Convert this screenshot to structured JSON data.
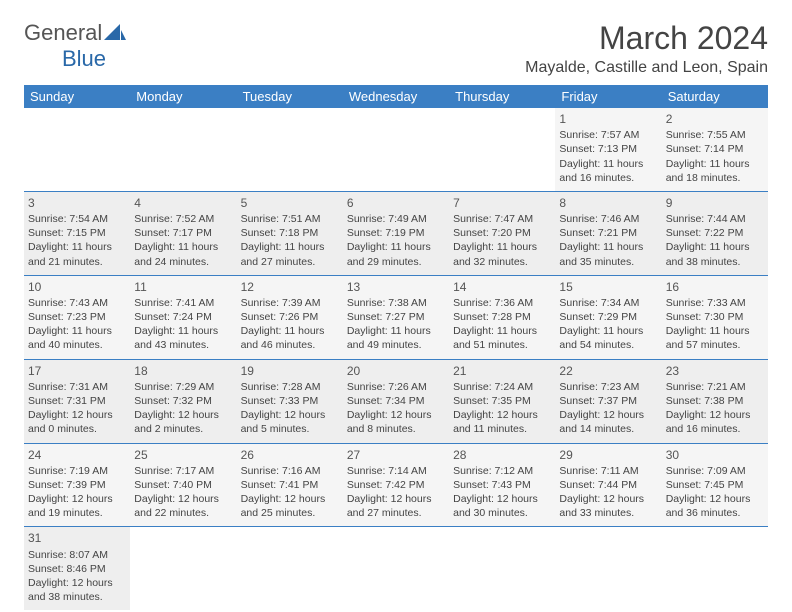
{
  "logo": {
    "text1": "General",
    "text2": "Blue"
  },
  "title": "March 2024",
  "location": "Mayalde, Castille and Leon, Spain",
  "colors": {
    "header_bg": "#3b7fc4",
    "header_text": "#ffffff",
    "cell_text": "#444444",
    "logo_gray": "#555555",
    "logo_blue": "#2968a8"
  },
  "day_headers": [
    "Sunday",
    "Monday",
    "Tuesday",
    "Wednesday",
    "Thursday",
    "Friday",
    "Saturday"
  ],
  "weeks": [
    [
      null,
      null,
      null,
      null,
      null,
      {
        "d": "1",
        "sr": "7:57 AM",
        "ss": "7:13 PM",
        "dl": "11 hours and 16 minutes."
      },
      {
        "d": "2",
        "sr": "7:55 AM",
        "ss": "7:14 PM",
        "dl": "11 hours and 18 minutes."
      }
    ],
    [
      {
        "d": "3",
        "sr": "7:54 AM",
        "ss": "7:15 PM",
        "dl": "11 hours and 21 minutes."
      },
      {
        "d": "4",
        "sr": "7:52 AM",
        "ss": "7:17 PM",
        "dl": "11 hours and 24 minutes."
      },
      {
        "d": "5",
        "sr": "7:51 AM",
        "ss": "7:18 PM",
        "dl": "11 hours and 27 minutes."
      },
      {
        "d": "6",
        "sr": "7:49 AM",
        "ss": "7:19 PM",
        "dl": "11 hours and 29 minutes."
      },
      {
        "d": "7",
        "sr": "7:47 AM",
        "ss": "7:20 PM",
        "dl": "11 hours and 32 minutes."
      },
      {
        "d": "8",
        "sr": "7:46 AM",
        "ss": "7:21 PM",
        "dl": "11 hours and 35 minutes."
      },
      {
        "d": "9",
        "sr": "7:44 AM",
        "ss": "7:22 PM",
        "dl": "11 hours and 38 minutes."
      }
    ],
    [
      {
        "d": "10",
        "sr": "7:43 AM",
        "ss": "7:23 PM",
        "dl": "11 hours and 40 minutes."
      },
      {
        "d": "11",
        "sr": "7:41 AM",
        "ss": "7:24 PM",
        "dl": "11 hours and 43 minutes."
      },
      {
        "d": "12",
        "sr": "7:39 AM",
        "ss": "7:26 PM",
        "dl": "11 hours and 46 minutes."
      },
      {
        "d": "13",
        "sr": "7:38 AM",
        "ss": "7:27 PM",
        "dl": "11 hours and 49 minutes."
      },
      {
        "d": "14",
        "sr": "7:36 AM",
        "ss": "7:28 PM",
        "dl": "11 hours and 51 minutes."
      },
      {
        "d": "15",
        "sr": "7:34 AM",
        "ss": "7:29 PM",
        "dl": "11 hours and 54 minutes."
      },
      {
        "d": "16",
        "sr": "7:33 AM",
        "ss": "7:30 PM",
        "dl": "11 hours and 57 minutes."
      }
    ],
    [
      {
        "d": "17",
        "sr": "7:31 AM",
        "ss": "7:31 PM",
        "dl": "12 hours and 0 minutes."
      },
      {
        "d": "18",
        "sr": "7:29 AM",
        "ss": "7:32 PM",
        "dl": "12 hours and 2 minutes."
      },
      {
        "d": "19",
        "sr": "7:28 AM",
        "ss": "7:33 PM",
        "dl": "12 hours and 5 minutes."
      },
      {
        "d": "20",
        "sr": "7:26 AM",
        "ss": "7:34 PM",
        "dl": "12 hours and 8 minutes."
      },
      {
        "d": "21",
        "sr": "7:24 AM",
        "ss": "7:35 PM",
        "dl": "12 hours and 11 minutes."
      },
      {
        "d": "22",
        "sr": "7:23 AM",
        "ss": "7:37 PM",
        "dl": "12 hours and 14 minutes."
      },
      {
        "d": "23",
        "sr": "7:21 AM",
        "ss": "7:38 PM",
        "dl": "12 hours and 16 minutes."
      }
    ],
    [
      {
        "d": "24",
        "sr": "7:19 AM",
        "ss": "7:39 PM",
        "dl": "12 hours and 19 minutes."
      },
      {
        "d": "25",
        "sr": "7:17 AM",
        "ss": "7:40 PM",
        "dl": "12 hours and 22 minutes."
      },
      {
        "d": "26",
        "sr": "7:16 AM",
        "ss": "7:41 PM",
        "dl": "12 hours and 25 minutes."
      },
      {
        "d": "27",
        "sr": "7:14 AM",
        "ss": "7:42 PM",
        "dl": "12 hours and 27 minutes."
      },
      {
        "d": "28",
        "sr": "7:12 AM",
        "ss": "7:43 PM",
        "dl": "12 hours and 30 minutes."
      },
      {
        "d": "29",
        "sr": "7:11 AM",
        "ss": "7:44 PM",
        "dl": "12 hours and 33 minutes."
      },
      {
        "d": "30",
        "sr": "7:09 AM",
        "ss": "7:45 PM",
        "dl": "12 hours and 36 minutes."
      }
    ],
    [
      {
        "d": "31",
        "sr": "8:07 AM",
        "ss": "8:46 PM",
        "dl": "12 hours and 38 minutes."
      },
      null,
      null,
      null,
      null,
      null,
      null
    ]
  ],
  "labels": {
    "sunrise": "Sunrise:",
    "sunset": "Sunset:",
    "daylight": "Daylight:"
  }
}
